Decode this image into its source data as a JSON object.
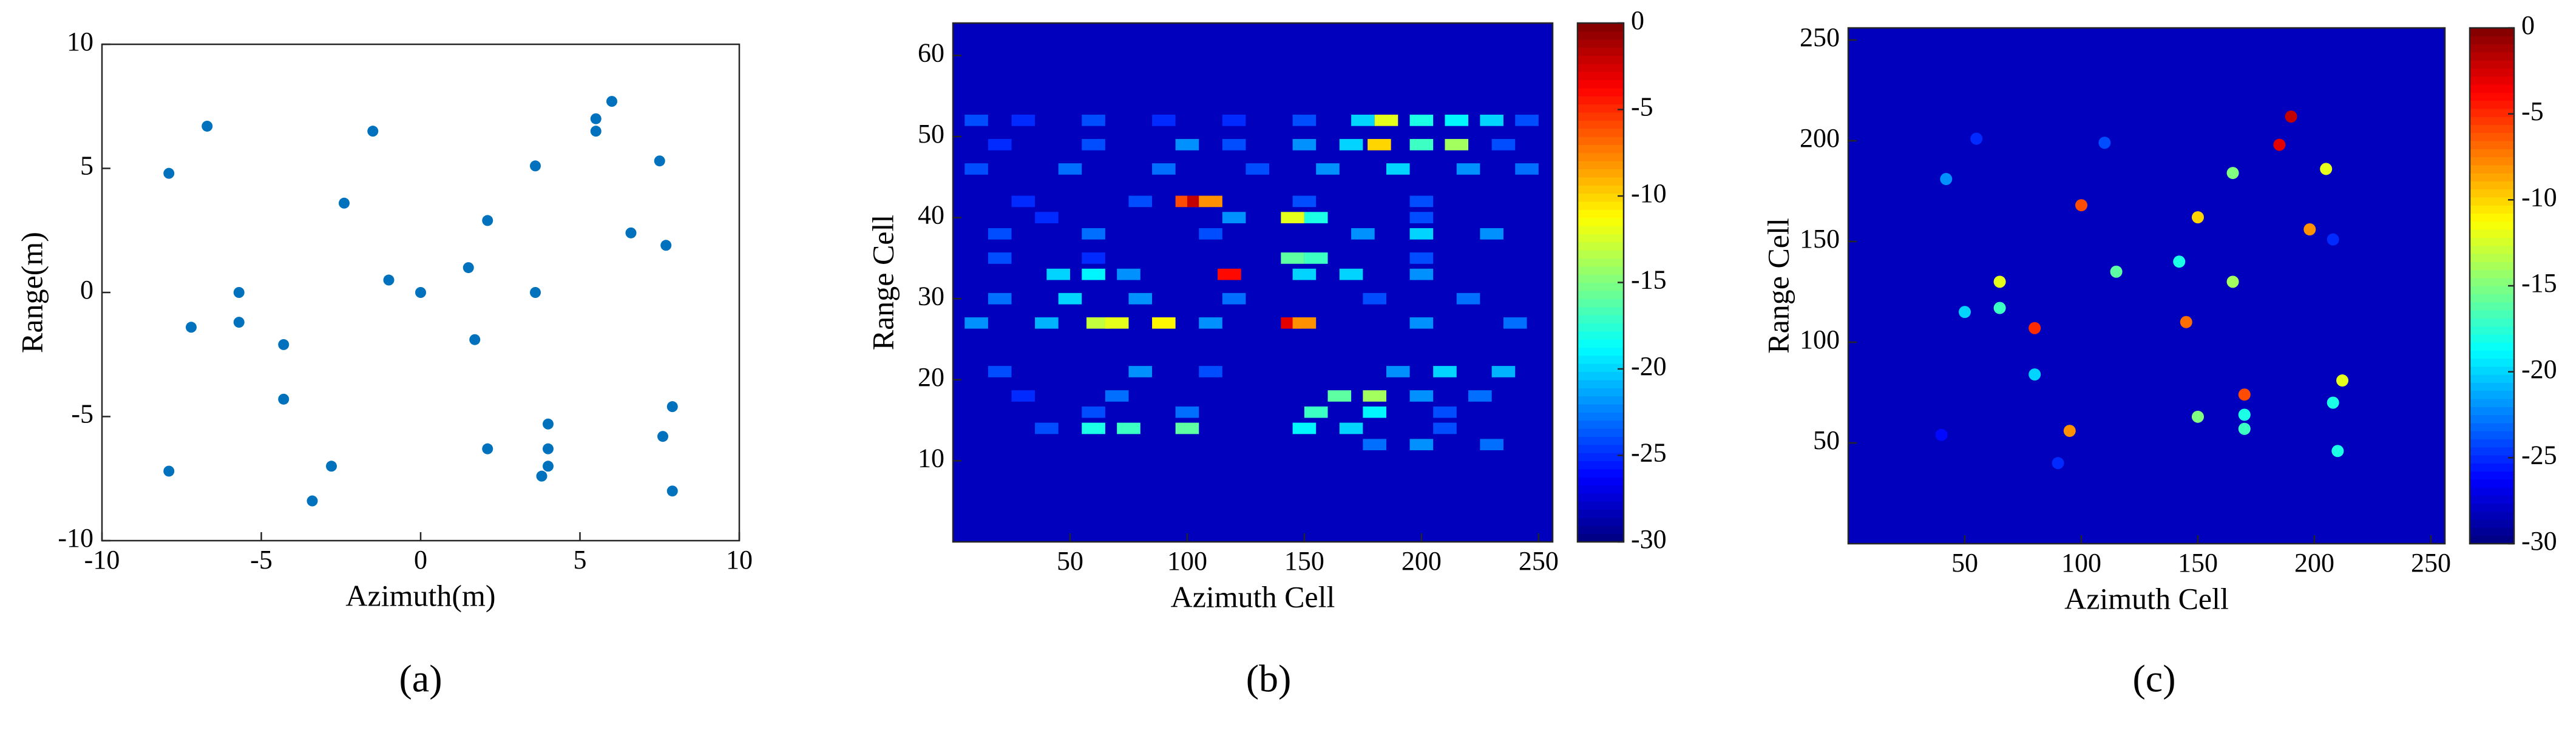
{
  "chart_data": [
    {
      "type": "scatter",
      "panel_label": "(a)",
      "x_label": "Azimuth(m)",
      "y_label": "Range(m)",
      "color": "#0072bd",
      "x": [
        -7.9,
        -6.7,
        -7.2,
        -5.7,
        -5.7,
        -7.9,
        -4.3,
        -4.3,
        -2.8,
        -3.4,
        -1.5,
        -2.4,
        -1,
        0,
        1.5,
        1.7,
        2.1,
        2.1,
        3.6,
        3.6,
        5.5,
        5.5,
        6,
        6.6,
        7.5,
        7.7,
        7.6,
        7.9,
        7.9,
        4,
        4,
        4,
        3.8
      ],
      "y": [
        4.8,
        6.7,
        -1.4,
        0,
        -1.2,
        -7.2,
        -2.1,
        -4.3,
        -7,
        -8.4,
        6.5,
        3.6,
        0.5,
        0,
        1,
        -1.9,
        2.9,
        -6.3,
        5.1,
        0,
        7,
        6.5,
        7.7,
        2.4,
        5.3,
        1.9,
        -5.8,
        -4.6,
        -8,
        -5.3,
        -6.3,
        -7,
        -7.4
      ],
      "xlim": [
        -10,
        10
      ],
      "ylim": [
        -10,
        10
      ],
      "xticks": [
        -10,
        -5,
        0,
        5,
        10
      ],
      "yticks": [
        -10,
        -5,
        0,
        5,
        10
      ]
    },
    {
      "type": "heatmap",
      "panel_label": "(b)",
      "x_label": "Azimuth Cell",
      "y_label": "Range Cell",
      "colormap": "jet",
      "x": [
        10,
        30,
        60,
        90,
        120,
        150,
        175,
        185,
        200,
        215,
        230,
        245,
        20,
        60,
        100,
        120,
        150,
        170,
        182,
        200,
        215,
        235,
        10,
        50,
        90,
        130,
        160,
        190,
        220,
        245,
        30,
        80,
        100,
        105,
        110,
        150,
        200,
        40,
        120,
        145,
        155,
        200,
        20,
        60,
        110,
        175,
        200,
        230,
        20,
        60,
        145,
        155,
        200,
        45,
        60,
        75,
        118,
        150,
        170,
        200,
        20,
        50,
        80,
        120,
        180,
        220,
        10,
        40,
        62,
        70,
        90,
        110,
        145,
        150,
        200,
        240,
        20,
        80,
        110,
        190,
        210,
        235,
        30,
        70,
        165,
        180,
        200,
        225,
        60,
        100,
        155,
        180,
        210,
        40,
        60,
        75,
        100,
        150,
        170,
        210,
        180,
        200,
        230
      ],
      "y": [
        52,
        52,
        52,
        52,
        52,
        52,
        52,
        52,
        52,
        52,
        52,
        52,
        49,
        49,
        49,
        49,
        49,
        49,
        49,
        49,
        49,
        49,
        46,
        46,
        46,
        46,
        46,
        46,
        46,
        46,
        42,
        42,
        42,
        42,
        42,
        42,
        42,
        40,
        40,
        40,
        40,
        40,
        38,
        38,
        38,
        38,
        38,
        38,
        35,
        35,
        35,
        35,
        35,
        33,
        33,
        33,
        33,
        33,
        33,
        33,
        30,
        30,
        30,
        30,
        30,
        30,
        27,
        27,
        27,
        27,
        27,
        27,
        27,
        27,
        27,
        27,
        21,
        21,
        21,
        21,
        21,
        21,
        18,
        18,
        18,
        18,
        18,
        18,
        16,
        16,
        16,
        16,
        16,
        14,
        14,
        14,
        14,
        14,
        14,
        14,
        12,
        12,
        12
      ],
      "values": [
        -24,
        -25,
        -24,
        -25,
        -25,
        -24,
        -20,
        -12,
        -18,
        -19,
        -20,
        -24,
        -25,
        -24,
        -22,
        -24,
        -22,
        -20,
        -10,
        -17,
        -14,
        -24,
        -24,
        -23,
        -23,
        -24,
        -22,
        -20,
        -22,
        -23,
        -25,
        -24,
        -6,
        -2,
        -8,
        -24,
        -24,
        -25,
        -22,
        -12,
        -18,
        -24,
        -24,
        -23,
        -24,
        -22,
        -20,
        -22,
        -24,
        -25,
        -16,
        -17,
        -24,
        -20,
        -19,
        -22,
        -4,
        -20,
        -20,
        -22,
        -23,
        -20,
        -22,
        -23,
        -24,
        -23,
        -22,
        -21,
        -13,
        -12,
        -11,
        -22,
        -3,
        -8,
        -22,
        -23,
        -24,
        -22,
        -24,
        -22,
        -20,
        -21,
        -25,
        -23,
        -16,
        -14,
        -22,
        -23,
        -24,
        -23,
        -17,
        -19,
        -24,
        -24,
        -18,
        -17,
        -16,
        -19,
        -20,
        -24,
        -23,
        -22,
        -23
      ],
      "xlim": [
        0,
        256
      ],
      "ylim": [
        0,
        64
      ],
      "xticks": [
        50,
        100,
        150,
        200,
        250
      ],
      "yticks": [
        10,
        20,
        30,
        40,
        50,
        60
      ],
      "clim": [
        -30,
        0
      ],
      "cticks": [
        0,
        -5,
        -10,
        -15,
        -20,
        -25,
        -30
      ]
    },
    {
      "type": "heatmap",
      "panel_label": "(c)",
      "x_label": "Azimuth Cell",
      "y_label": "Range Cell",
      "colormap": "jet",
      "x": [
        190,
        185,
        205,
        42,
        55,
        110,
        165,
        100,
        150,
        198,
        208,
        142,
        115,
        65,
        165,
        65,
        50,
        145,
        80,
        212,
        80,
        170,
        208,
        170,
        150,
        170,
        95,
        40,
        210,
        90
      ],
      "y": [
        212,
        198,
        186,
        181,
        201,
        199,
        184,
        168,
        162,
        156,
        151,
        140,
        135,
        130,
        130,
        117,
        115,
        110,
        107,
        81,
        84,
        74,
        70,
        64,
        63,
        57,
        56,
        54,
        46,
        40
      ],
      "values": [
        -2,
        -3,
        -12,
        -22,
        -25,
        -24,
        -15,
        -6,
        -10,
        -8,
        -25,
        -18,
        -16,
        -12,
        -14,
        -17,
        -20,
        -7,
        -5,
        -12,
        -20,
        -6,
        -18,
        -18,
        -15,
        -17,
        -8,
        -26,
        -18,
        -25
      ],
      "xlim": [
        0,
        256
      ],
      "ylim": [
        0,
        256
      ],
      "xticks": [
        50,
        100,
        150,
        200,
        250
      ],
      "yticks": [
        50,
        100,
        150,
        200,
        250
      ],
      "clim": [
        -30,
        0
      ],
      "cticks": [
        0,
        -5,
        -10,
        -15,
        -20,
        -25,
        -30
      ]
    }
  ]
}
